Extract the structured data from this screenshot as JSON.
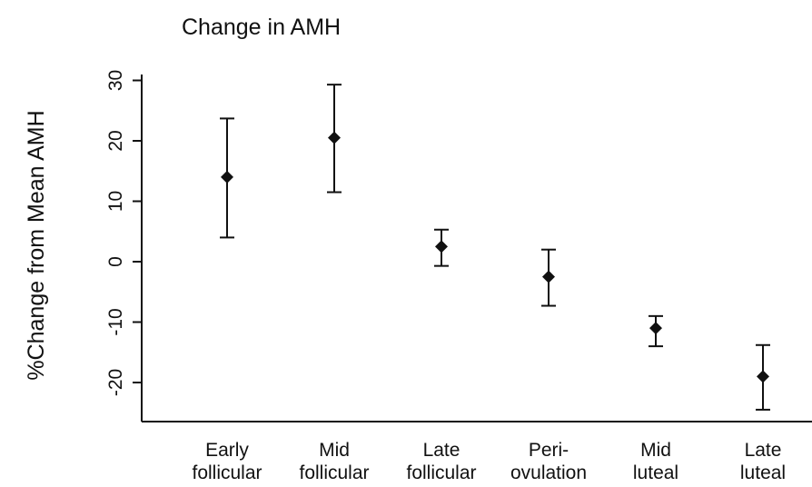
{
  "chart_data": {
    "type": "scatter",
    "title": "Change in AMH",
    "xlabel": "",
    "ylabel": "%Change from Mean AMH",
    "ylim": [
      -26.5,
      30
    ],
    "yticks": [
      30,
      20,
      10,
      0,
      -10,
      -20
    ],
    "grid": false,
    "legend": "none",
    "categories": [
      [
        "Early",
        "follicular"
      ],
      [
        "Mid",
        "follicular"
      ],
      [
        "Late",
        "follicular"
      ],
      [
        "Peri-",
        "ovulation"
      ],
      [
        "Mid",
        "luteal"
      ],
      [
        "Late",
        "luteal"
      ]
    ],
    "values": [
      14,
      20.5,
      2.5,
      -2.5,
      -11,
      -19
    ],
    "error_low": [
      4,
      11.5,
      -0.7,
      -7.3,
      -14,
      -24.5
    ],
    "error_high": [
      23.7,
      29.3,
      5.3,
      2,
      -9,
      -13.8
    ],
    "color": "#111111"
  }
}
